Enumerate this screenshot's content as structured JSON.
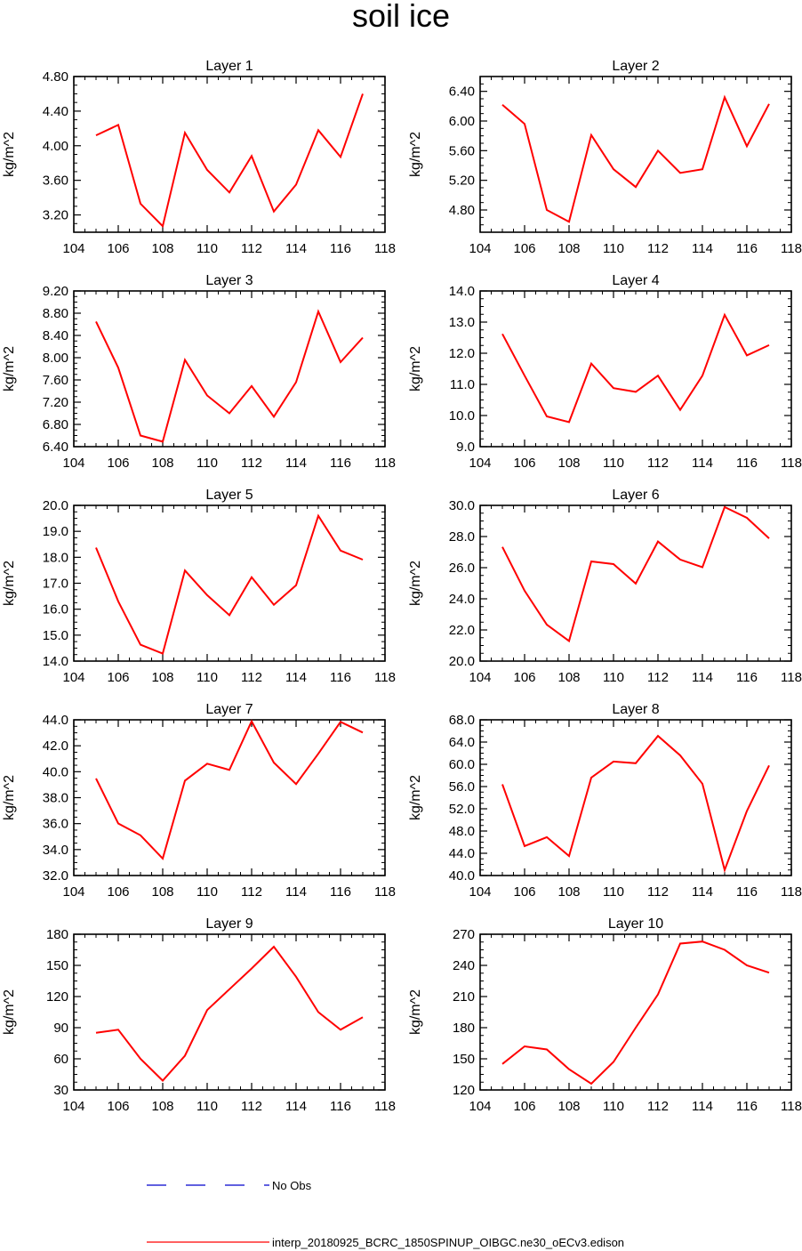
{
  "title": "soil ice",
  "colors": {
    "series": "#ff0000",
    "obs": "#0000cc",
    "axis": "#000000"
  },
  "legend": {
    "obs_label": "No Obs",
    "series_label": "interp_20180925_BCRC_1850SPINUP_OIBGC.ne30_oECv3.edison"
  },
  "chart_data": [
    {
      "type": "line",
      "title": "Layer 1",
      "ylabel": "kg/m^2",
      "xlim": [
        104,
        118
      ],
      "ylim": [
        3.0,
        4.8
      ],
      "xticks": [
        104,
        106,
        108,
        110,
        112,
        114,
        116,
        118
      ],
      "xtick_labels": [
        "104",
        "106",
        "108",
        "110",
        "112",
        "114",
        "116",
        "118"
      ],
      "yticks": [
        3.2,
        3.6,
        4.0,
        4.4,
        4.8
      ],
      "ytick_labels": [
        "3.20",
        "3.60",
        "4.00",
        "4.40",
        "4.80"
      ],
      "x": [
        105,
        106,
        107,
        108,
        109,
        110,
        111,
        112,
        113,
        114,
        115,
        116,
        117
      ],
      "series": [
        {
          "values": [
            4.12,
            4.24,
            3.33,
            3.07,
            4.15,
            3.72,
            3.46,
            3.88,
            3.24,
            3.55,
            4.18,
            3.87,
            4.6
          ]
        }
      ]
    },
    {
      "type": "line",
      "title": "Layer 2",
      "ylabel": "kg/m^2",
      "xlim": [
        104,
        118
      ],
      "ylim": [
        4.5,
        6.6
      ],
      "xticks": [
        104,
        106,
        108,
        110,
        112,
        114,
        116,
        118
      ],
      "xtick_labels": [
        "104",
        "106",
        "108",
        "110",
        "112",
        "114",
        "116",
        "118"
      ],
      "yticks": [
        4.8,
        5.2,
        5.6,
        6.0,
        6.4
      ],
      "ytick_labels": [
        "4.80",
        "5.20",
        "5.60",
        "6.00",
        "6.40"
      ],
      "x": [
        105,
        106,
        107,
        108,
        109,
        110,
        111,
        112,
        113,
        114,
        115,
        116,
        117
      ],
      "series": [
        {
          "values": [
            6.22,
            5.96,
            4.8,
            4.64,
            5.81,
            5.35,
            5.11,
            5.6,
            5.3,
            5.35,
            6.32,
            5.66,
            6.23
          ]
        }
      ]
    },
    {
      "type": "line",
      "title": "Layer 3",
      "ylabel": "kg/m^2",
      "xlim": [
        104,
        118
      ],
      "ylim": [
        6.4,
        9.2
      ],
      "xticks": [
        104,
        106,
        108,
        110,
        112,
        114,
        116,
        118
      ],
      "xtick_labels": [
        "104",
        "106",
        "108",
        "110",
        "112",
        "114",
        "116",
        "118"
      ],
      "yticks": [
        6.4,
        6.8,
        7.2,
        7.6,
        8.0,
        8.4,
        8.8,
        9.2
      ],
      "ytick_labels": [
        "6.40",
        "6.80",
        "7.20",
        "7.60",
        "8.00",
        "8.40",
        "8.80",
        "9.20"
      ],
      "x": [
        105,
        106,
        107,
        108,
        109,
        110,
        111,
        112,
        113,
        114,
        115,
        116,
        117
      ],
      "series": [
        {
          "values": [
            8.65,
            7.82,
            6.6,
            6.49,
            7.96,
            7.32,
            7.0,
            7.49,
            6.94,
            7.56,
            8.83,
            7.92,
            8.36
          ]
        }
      ]
    },
    {
      "type": "line",
      "title": "Layer 4",
      "ylabel": "kg/m^2",
      "xlim": [
        104,
        118
      ],
      "ylim": [
        9.0,
        14.0
      ],
      "xticks": [
        104,
        106,
        108,
        110,
        112,
        114,
        116,
        118
      ],
      "xtick_labels": [
        "104",
        "106",
        "108",
        "110",
        "112",
        "114",
        "116",
        "118"
      ],
      "yticks": [
        9.0,
        10.0,
        11.0,
        12.0,
        13.0,
        14.0
      ],
      "ytick_labels": [
        "9.0",
        "10.0",
        "11.0",
        "12.0",
        "13.0",
        "14.0"
      ],
      "x": [
        105,
        106,
        107,
        108,
        109,
        110,
        111,
        112,
        113,
        114,
        115,
        116,
        117
      ],
      "series": [
        {
          "values": [
            12.62,
            11.28,
            9.97,
            9.79,
            11.67,
            10.88,
            10.76,
            11.28,
            10.18,
            11.28,
            13.23,
            11.93,
            12.26
          ]
        }
      ]
    },
    {
      "type": "line",
      "title": "Layer 5",
      "ylabel": "kg/m^2",
      "xlim": [
        104,
        118
      ],
      "ylim": [
        14.0,
        20.0
      ],
      "xticks": [
        104,
        106,
        108,
        110,
        112,
        114,
        116,
        118
      ],
      "xtick_labels": [
        "104",
        "106",
        "108",
        "110",
        "112",
        "114",
        "116",
        "118"
      ],
      "yticks": [
        14.0,
        15.0,
        16.0,
        17.0,
        18.0,
        19.0,
        20.0
      ],
      "ytick_labels": [
        "14.0",
        "15.0",
        "16.0",
        "17.0",
        "18.0",
        "19.0",
        "20.0"
      ],
      "x": [
        105,
        106,
        107,
        108,
        109,
        110,
        111,
        112,
        113,
        114,
        115,
        116,
        117
      ],
      "series": [
        {
          "values": [
            18.37,
            16.3,
            14.63,
            14.29,
            17.49,
            16.54,
            15.77,
            17.23,
            16.17,
            16.92,
            19.6,
            18.26,
            17.91
          ]
        }
      ]
    },
    {
      "type": "line",
      "title": "Layer 6",
      "ylabel": "kg/m^2",
      "xlim": [
        104,
        118
      ],
      "ylim": [
        20.0,
        30.0
      ],
      "xticks": [
        104,
        106,
        108,
        110,
        112,
        114,
        116,
        118
      ],
      "xtick_labels": [
        "104",
        "106",
        "108",
        "110",
        "112",
        "114",
        "116",
        "118"
      ],
      "yticks": [
        20.0,
        22.0,
        24.0,
        26.0,
        28.0,
        30.0
      ],
      "ytick_labels": [
        "20.0",
        "22.0",
        "24.0",
        "26.0",
        "28.0",
        "30.0"
      ],
      "x": [
        105,
        106,
        107,
        108,
        109,
        110,
        111,
        112,
        113,
        114,
        115,
        116,
        117
      ],
      "series": [
        {
          "values": [
            27.33,
            24.52,
            22.34,
            21.29,
            26.4,
            26.23,
            24.98,
            27.68,
            26.52,
            26.03,
            29.89,
            29.2,
            27.88
          ]
        }
      ]
    },
    {
      "type": "line",
      "title": "Layer 7",
      "ylabel": "kg/m^2",
      "xlim": [
        104,
        118
      ],
      "ylim": [
        32.0,
        44.0
      ],
      "xticks": [
        104,
        106,
        108,
        110,
        112,
        114,
        116,
        118
      ],
      "xtick_labels": [
        "104",
        "106",
        "108",
        "110",
        "112",
        "114",
        "116",
        "118"
      ],
      "yticks": [
        32.0,
        34.0,
        36.0,
        38.0,
        40.0,
        42.0,
        44.0
      ],
      "ytick_labels": [
        "32.0",
        "34.0",
        "36.0",
        "38.0",
        "40.0",
        "42.0",
        "44.0"
      ],
      "x": [
        105,
        106,
        107,
        108,
        109,
        110,
        111,
        112,
        113,
        114,
        115,
        116,
        117
      ],
      "series": [
        {
          "values": [
            39.48,
            36.01,
            35.1,
            33.31,
            39.31,
            40.62,
            40.14,
            43.89,
            40.7,
            39.05,
            41.39,
            43.84,
            43.02
          ]
        }
      ]
    },
    {
      "type": "line",
      "title": "Layer 8",
      "ylabel": "kg/m^2",
      "xlim": [
        104,
        118
      ],
      "ylim": [
        40.0,
        68.0
      ],
      "xticks": [
        104,
        106,
        108,
        110,
        112,
        114,
        116,
        118
      ],
      "xtick_labels": [
        "104",
        "106",
        "108",
        "110",
        "112",
        "114",
        "116",
        "118"
      ],
      "yticks": [
        40.0,
        44.0,
        48.0,
        52.0,
        56.0,
        60.0,
        64.0,
        68.0
      ],
      "ytick_labels": [
        "40.0",
        "44.0",
        "48.0",
        "52.0",
        "56.0",
        "60.0",
        "64.0",
        "68.0"
      ],
      "x": [
        105,
        106,
        107,
        108,
        109,
        110,
        111,
        112,
        113,
        114,
        115,
        116,
        117
      ],
      "series": [
        {
          "values": [
            56.4,
            45.3,
            46.9,
            43.5,
            57.6,
            60.5,
            60.2,
            65.1,
            61.6,
            56.5,
            41.0,
            51.6,
            59.8
          ]
        }
      ]
    },
    {
      "type": "line",
      "title": "Layer 9",
      "ylabel": "kg/m^2",
      "xlim": [
        104,
        118
      ],
      "ylim": [
        30,
        180
      ],
      "xticks": [
        104,
        106,
        108,
        110,
        112,
        114,
        116,
        118
      ],
      "xtick_labels": [
        "104",
        "106",
        "108",
        "110",
        "112",
        "114",
        "116",
        "118"
      ],
      "yticks": [
        30,
        60,
        90,
        120,
        150,
        180
      ],
      "ytick_labels": [
        "30",
        "60",
        "90",
        "120",
        "150",
        "180"
      ],
      "x": [
        105,
        106,
        107,
        108,
        109,
        110,
        111,
        112,
        113,
        114,
        115,
        116,
        117
      ],
      "series": [
        {
          "values": [
            85,
            88,
            60,
            39,
            63,
            107,
            127,
            147,
            168,
            139,
            105,
            88,
            100
          ]
        }
      ]
    },
    {
      "type": "line",
      "title": "Layer 10",
      "ylabel": "kg/m^2",
      "xlim": [
        104,
        118
      ],
      "ylim": [
        120,
        270
      ],
      "xticks": [
        104,
        106,
        108,
        110,
        112,
        114,
        116,
        118
      ],
      "xtick_labels": [
        "104",
        "106",
        "108",
        "110",
        "112",
        "114",
        "116",
        "118"
      ],
      "yticks": [
        120,
        150,
        180,
        210,
        240,
        270
      ],
      "ytick_labels": [
        "120",
        "150",
        "180",
        "210",
        "240",
        "270"
      ],
      "x": [
        105,
        106,
        107,
        108,
        109,
        110,
        111,
        112,
        113,
        114,
        115,
        116,
        117
      ],
      "series": [
        {
          "values": [
            145,
            162,
            159,
            140,
            126,
            147,
            180,
            212,
            261,
            263,
            255,
            240,
            233
          ]
        }
      ]
    }
  ]
}
